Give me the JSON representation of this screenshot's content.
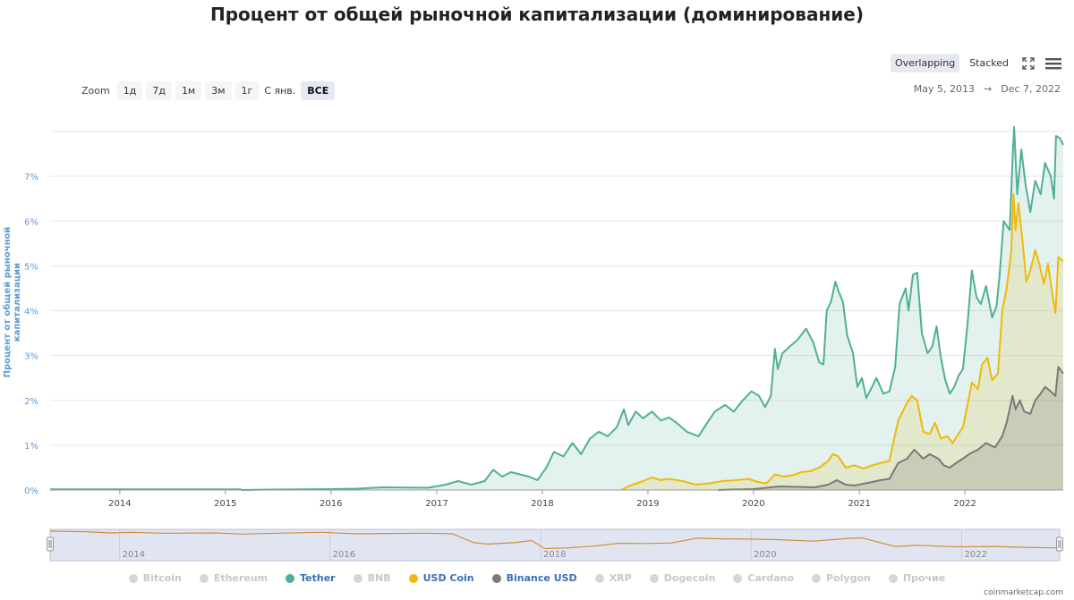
{
  "title": "Процент от общей рыночной капитализации (доминирование)",
  "toolbar": {
    "overlapping": "Overlapping",
    "stacked": "Stacked",
    "fullscreen_icon": "fullscreen-icon",
    "menu_icon": "hamburger-menu-icon"
  },
  "zoom": {
    "label": "Zoom",
    "buttons": [
      "1д",
      "7д",
      "1м",
      "3м",
      "1г",
      "С янв.",
      "ВСЕ"
    ],
    "active": "ВСЕ"
  },
  "date_range": {
    "from": "May 5, 2013",
    "arrow": "→",
    "to": "Dec 7, 2022"
  },
  "legend": [
    {
      "name": "Bitcoin",
      "color": "#d6d6d6",
      "visible": false
    },
    {
      "name": "Ethereum",
      "color": "#d6d6d6",
      "visible": false
    },
    {
      "name": "Tether",
      "color": "#50af95",
      "visible": true
    },
    {
      "name": "BNB",
      "color": "#d6d6d6",
      "visible": false
    },
    {
      "name": "USD Coin",
      "color": "#f0b90b",
      "visible": true
    },
    {
      "name": "Binance USD",
      "color": "#7a7a7a",
      "visible": true
    },
    {
      "name": "XRP",
      "color": "#d6d6d6",
      "visible": false
    },
    {
      "name": "Dogecoin",
      "color": "#d6d6d6",
      "visible": false
    },
    {
      "name": "Cardano",
      "color": "#d6d6d6",
      "visible": false
    },
    {
      "name": "Polygon",
      "color": "#d6d6d6",
      "visible": false
    },
    {
      "name": "Прочие",
      "color": "#d6d6d6",
      "visible": false
    }
  ],
  "credit": "coinmarketcap.com",
  "chart_data": {
    "type": "area",
    "title": "Процент от общей рыночной капитализации (доминирование)",
    "ylabel": "Процент от общей рыночной капитализации",
    "ylim": [
      0,
      8
    ],
    "yticks": [
      "0%",
      "1%",
      "2%",
      "3%",
      "4%",
      "5%",
      "6%",
      "7%"
    ],
    "ytick_values": [
      0,
      1,
      2,
      3,
      4,
      5,
      6,
      7
    ],
    "xlim": [
      "2013-05-05",
      "2022-12-07"
    ],
    "xticks": [
      "2014",
      "2015",
      "2016",
      "2017",
      "2018",
      "2019",
      "2020",
      "2021",
      "2022"
    ],
    "xtick_dates": [
      "2014-01-01",
      "2015-01-01",
      "2016-01-01",
      "2017-01-01",
      "2018-01-01",
      "2019-01-01",
      "2020-01-01",
      "2021-01-01",
      "2022-01-01"
    ],
    "navigator_xticks": [
      "2014",
      "2016",
      "2018",
      "2020",
      "2022"
    ],
    "navigator_xtick_dates": [
      "2014-01-01",
      "2016-01-01",
      "2018-01-01",
      "2020-01-01",
      "2022-01-01"
    ],
    "grid": true,
    "legend_position": "bottom",
    "series": [
      {
        "name": "Tether",
        "color": "#50af95",
        "fill": "rgba(80,175,149,0.16)",
        "points": [
          [
            "2015-02-25",
            0.0
          ],
          [
            "2015-06-01",
            0.01
          ],
          [
            "2016-01-01",
            0.02
          ],
          [
            "2016-04-01",
            0.03
          ],
          [
            "2016-07-01",
            0.06
          ],
          [
            "2016-12-01",
            0.05
          ],
          [
            "2017-02-01",
            0.12
          ],
          [
            "2017-03-15",
            0.2
          ],
          [
            "2017-05-01",
            0.12
          ],
          [
            "2017-06-15",
            0.2
          ],
          [
            "2017-07-15",
            0.45
          ],
          [
            "2017-08-15",
            0.3
          ],
          [
            "2017-09-15",
            0.4
          ],
          [
            "2017-10-15",
            0.35
          ],
          [
            "2017-11-15",
            0.3
          ],
          [
            "2017-12-15",
            0.22
          ],
          [
            "2018-01-15",
            0.5
          ],
          [
            "2018-02-10",
            0.85
          ],
          [
            "2018-03-15",
            0.75
          ],
          [
            "2018-04-15",
            1.05
          ],
          [
            "2018-05-15",
            0.8
          ],
          [
            "2018-06-15",
            1.15
          ],
          [
            "2018-07-15",
            1.3
          ],
          [
            "2018-08-15",
            1.2
          ],
          [
            "2018-09-15",
            1.4
          ],
          [
            "2018-10-10",
            1.8
          ],
          [
            "2018-10-25",
            1.45
          ],
          [
            "2018-11-20",
            1.75
          ],
          [
            "2018-12-15",
            1.6
          ],
          [
            "2019-01-15",
            1.75
          ],
          [
            "2019-02-15",
            1.55
          ],
          [
            "2019-03-15",
            1.62
          ],
          [
            "2019-04-10",
            1.5
          ],
          [
            "2019-05-15",
            1.3
          ],
          [
            "2019-06-25",
            1.2
          ],
          [
            "2019-07-20",
            1.45
          ],
          [
            "2019-08-20",
            1.75
          ],
          [
            "2019-09-25",
            1.9
          ],
          [
            "2019-10-25",
            1.75
          ],
          [
            "2019-11-25",
            2.0
          ],
          [
            "2019-12-25",
            2.2
          ],
          [
            "2020-01-20",
            2.1
          ],
          [
            "2020-02-10",
            1.85
          ],
          [
            "2020-03-01",
            2.1
          ],
          [
            "2020-03-15",
            3.15
          ],
          [
            "2020-03-25",
            2.7
          ],
          [
            "2020-04-10",
            3.05
          ],
          [
            "2020-05-05",
            3.2
          ],
          [
            "2020-06-01",
            3.35
          ],
          [
            "2020-07-01",
            3.6
          ],
          [
            "2020-07-25",
            3.3
          ],
          [
            "2020-08-15",
            2.85
          ],
          [
            "2020-08-30",
            2.8
          ],
          [
            "2020-09-10",
            4.0
          ],
          [
            "2020-09-25",
            4.2
          ],
          [
            "2020-10-10",
            4.65
          ],
          [
            "2020-10-20",
            4.45
          ],
          [
            "2020-11-05",
            4.2
          ],
          [
            "2020-11-20",
            3.45
          ],
          [
            "2020-12-10",
            3.05
          ],
          [
            "2020-12-25",
            2.3
          ],
          [
            "2021-01-10",
            2.5
          ],
          [
            "2021-01-25",
            2.05
          ],
          [
            "2021-02-10",
            2.25
          ],
          [
            "2021-03-01",
            2.5
          ],
          [
            "2021-03-25",
            2.15
          ],
          [
            "2021-04-15",
            2.2
          ],
          [
            "2021-05-05",
            2.75
          ],
          [
            "2021-05-20",
            4.15
          ],
          [
            "2021-06-10",
            4.5
          ],
          [
            "2021-06-20",
            4.0
          ],
          [
            "2021-07-05",
            4.8
          ],
          [
            "2021-07-20",
            4.85
          ],
          [
            "2021-08-05",
            3.5
          ],
          [
            "2021-08-25",
            3.05
          ],
          [
            "2021-09-10",
            3.2
          ],
          [
            "2021-09-25",
            3.65
          ],
          [
            "2021-10-10",
            2.95
          ],
          [
            "2021-10-25",
            2.45
          ],
          [
            "2021-11-10",
            2.15
          ],
          [
            "2021-11-25",
            2.3
          ],
          [
            "2021-12-10",
            2.55
          ],
          [
            "2021-12-25",
            2.7
          ],
          [
            "2022-01-10",
            3.7
          ],
          [
            "2022-01-25",
            4.9
          ],
          [
            "2022-02-10",
            4.3
          ],
          [
            "2022-02-25",
            4.15
          ],
          [
            "2022-03-15",
            4.55
          ],
          [
            "2022-04-05",
            3.85
          ],
          [
            "2022-04-20",
            4.1
          ],
          [
            "2022-05-01",
            4.8
          ],
          [
            "2022-05-15",
            6.0
          ],
          [
            "2022-06-05",
            5.8
          ],
          [
            "2022-06-15",
            7.4
          ],
          [
            "2022-06-20",
            8.1
          ],
          [
            "2022-07-01",
            6.6
          ],
          [
            "2022-07-15",
            7.6
          ],
          [
            "2022-07-30",
            6.8
          ],
          [
            "2022-08-15",
            6.2
          ],
          [
            "2022-09-01",
            6.9
          ],
          [
            "2022-09-20",
            6.6
          ],
          [
            "2022-10-05",
            7.3
          ],
          [
            "2022-10-25",
            7.0
          ],
          [
            "2022-11-05",
            6.5
          ],
          [
            "2022-11-12",
            7.9
          ],
          [
            "2022-11-25",
            7.85
          ],
          [
            "2022-12-07",
            7.7
          ]
        ]
      },
      {
        "name": "USD Coin",
        "color": "#f0b90b",
        "fill": "rgba(220,200,90,0.24)",
        "points": [
          [
            "2018-10-01",
            0.0
          ],
          [
            "2018-11-01",
            0.1
          ],
          [
            "2018-12-15",
            0.2
          ],
          [
            "2019-01-15",
            0.28
          ],
          [
            "2019-02-15",
            0.22
          ],
          [
            "2019-03-15",
            0.25
          ],
          [
            "2019-05-01",
            0.2
          ],
          [
            "2019-06-15",
            0.12
          ],
          [
            "2019-08-01",
            0.15
          ],
          [
            "2019-09-15",
            0.2
          ],
          [
            "2019-11-01",
            0.22
          ],
          [
            "2019-12-15",
            0.25
          ],
          [
            "2020-01-15",
            0.18
          ],
          [
            "2020-02-15",
            0.15
          ],
          [
            "2020-03-15",
            0.35
          ],
          [
            "2020-04-15",
            0.3
          ],
          [
            "2020-05-15",
            0.33
          ],
          [
            "2020-06-15",
            0.4
          ],
          [
            "2020-07-15",
            0.42
          ],
          [
            "2020-08-15",
            0.5
          ],
          [
            "2020-09-15",
            0.65
          ],
          [
            "2020-10-01",
            0.8
          ],
          [
            "2020-10-20",
            0.75
          ],
          [
            "2020-11-15",
            0.5
          ],
          [
            "2020-12-15",
            0.55
          ],
          [
            "2021-01-15",
            0.48
          ],
          [
            "2021-02-15",
            0.55
          ],
          [
            "2021-03-15",
            0.6
          ],
          [
            "2021-04-15",
            0.65
          ],
          [
            "2021-05-15",
            1.55
          ],
          [
            "2021-06-15",
            1.95
          ],
          [
            "2021-07-01",
            2.1
          ],
          [
            "2021-07-20",
            2.0
          ],
          [
            "2021-08-10",
            1.3
          ],
          [
            "2021-09-01",
            1.25
          ],
          [
            "2021-09-20",
            1.5
          ],
          [
            "2021-10-10",
            1.15
          ],
          [
            "2021-11-01",
            1.2
          ],
          [
            "2021-11-20",
            1.05
          ],
          [
            "2021-12-10",
            1.25
          ],
          [
            "2021-12-25",
            1.4
          ],
          [
            "2022-01-10",
            1.9
          ],
          [
            "2022-01-25",
            2.4
          ],
          [
            "2022-02-15",
            2.25
          ],
          [
            "2022-03-01",
            2.8
          ],
          [
            "2022-03-20",
            2.95
          ],
          [
            "2022-04-05",
            2.45
          ],
          [
            "2022-04-25",
            2.6
          ],
          [
            "2022-05-10",
            4.0
          ],
          [
            "2022-05-25",
            4.5
          ],
          [
            "2022-06-10",
            5.3
          ],
          [
            "2022-06-18",
            6.6
          ],
          [
            "2022-06-25",
            5.8
          ],
          [
            "2022-07-05",
            6.4
          ],
          [
            "2022-07-20",
            5.5
          ],
          [
            "2022-08-01",
            4.65
          ],
          [
            "2022-08-15",
            4.9
          ],
          [
            "2022-09-01",
            5.35
          ],
          [
            "2022-09-15",
            5.05
          ],
          [
            "2022-10-01",
            4.6
          ],
          [
            "2022-10-15",
            5.05
          ],
          [
            "2022-11-01",
            4.3
          ],
          [
            "2022-11-10",
            3.95
          ],
          [
            "2022-11-20",
            5.2
          ],
          [
            "2022-12-07",
            5.1
          ]
        ]
      },
      {
        "name": "Binance USD",
        "color": "#7a7a7a",
        "fill": "rgba(110,110,110,0.22)",
        "points": [
          [
            "2019-09-01",
            0.0
          ],
          [
            "2019-10-15",
            0.01
          ],
          [
            "2020-01-01",
            0.02
          ],
          [
            "2020-02-15",
            0.05
          ],
          [
            "2020-04-01",
            0.08
          ],
          [
            "2020-06-01",
            0.07
          ],
          [
            "2020-08-01",
            0.06
          ],
          [
            "2020-09-15",
            0.12
          ],
          [
            "2020-10-15",
            0.22
          ],
          [
            "2020-11-15",
            0.12
          ],
          [
            "2020-12-15",
            0.1
          ],
          [
            "2021-01-15",
            0.14
          ],
          [
            "2021-02-15",
            0.18
          ],
          [
            "2021-03-15",
            0.22
          ],
          [
            "2021-04-15",
            0.25
          ],
          [
            "2021-05-15",
            0.6
          ],
          [
            "2021-06-15",
            0.7
          ],
          [
            "2021-07-10",
            0.9
          ],
          [
            "2021-08-10",
            0.7
          ],
          [
            "2021-09-01",
            0.8
          ],
          [
            "2021-10-01",
            0.7
          ],
          [
            "2021-10-20",
            0.55
          ],
          [
            "2021-11-10",
            0.5
          ],
          [
            "2021-12-01",
            0.6
          ],
          [
            "2021-12-25",
            0.7
          ],
          [
            "2022-01-15",
            0.8
          ],
          [
            "2022-02-15",
            0.9
          ],
          [
            "2022-03-15",
            1.05
          ],
          [
            "2022-04-15",
            0.95
          ],
          [
            "2022-05-10",
            1.2
          ],
          [
            "2022-05-25",
            1.5
          ],
          [
            "2022-06-15",
            2.1
          ],
          [
            "2022-06-25",
            1.8
          ],
          [
            "2022-07-10",
            2.0
          ],
          [
            "2022-07-25",
            1.75
          ],
          [
            "2022-08-15",
            1.7
          ],
          [
            "2022-09-01",
            2.0
          ],
          [
            "2022-09-20",
            2.15
          ],
          [
            "2022-10-05",
            2.3
          ],
          [
            "2022-10-25",
            2.2
          ],
          [
            "2022-11-10",
            2.1
          ],
          [
            "2022-11-20",
            2.75
          ],
          [
            "2022-12-07",
            2.6
          ]
        ]
      }
    ],
    "navigator_series": {
      "name": "Bitcoin",
      "color": "#d08f3c",
      "points": [
        [
          "2013-05-05",
          94
        ],
        [
          "2013-09-01",
          92
        ],
        [
          "2013-12-01",
          88
        ],
        [
          "2014-02-15",
          90
        ],
        [
          "2014-06-01",
          87
        ],
        [
          "2014-12-01",
          88
        ],
        [
          "2015-03-01",
          84
        ],
        [
          "2015-07-01",
          87
        ],
        [
          "2015-12-01",
          90
        ],
        [
          "2016-04-01",
          85
        ],
        [
          "2016-08-01",
          86
        ],
        [
          "2016-12-01",
          87
        ],
        [
          "2017-03-01",
          85
        ],
        [
          "2017-05-15",
          55
        ],
        [
          "2017-07-01",
          50
        ],
        [
          "2017-10-01",
          55
        ],
        [
          "2017-12-01",
          62
        ],
        [
          "2018-01-15",
          35
        ],
        [
          "2018-04-01",
          37
        ],
        [
          "2018-07-01",
          43
        ],
        [
          "2018-10-01",
          53
        ],
        [
          "2019-01-01",
          52
        ],
        [
          "2019-04-01",
          54
        ],
        [
          "2019-06-25",
          70
        ],
        [
          "2019-10-01",
          68
        ],
        [
          "2020-01-01",
          67
        ],
        [
          "2020-04-01",
          65
        ],
        [
          "2020-08-01",
          60
        ],
        [
          "2020-12-15",
          70
        ],
        [
          "2021-01-20",
          71
        ],
        [
          "2021-05-15",
          42
        ],
        [
          "2021-08-01",
          46
        ],
        [
          "2021-11-01",
          42
        ],
        [
          "2022-01-01",
          41
        ],
        [
          "2022-05-01",
          42
        ],
        [
          "2022-08-01",
          39
        ],
        [
          "2022-12-07",
          37
        ]
      ]
    }
  }
}
